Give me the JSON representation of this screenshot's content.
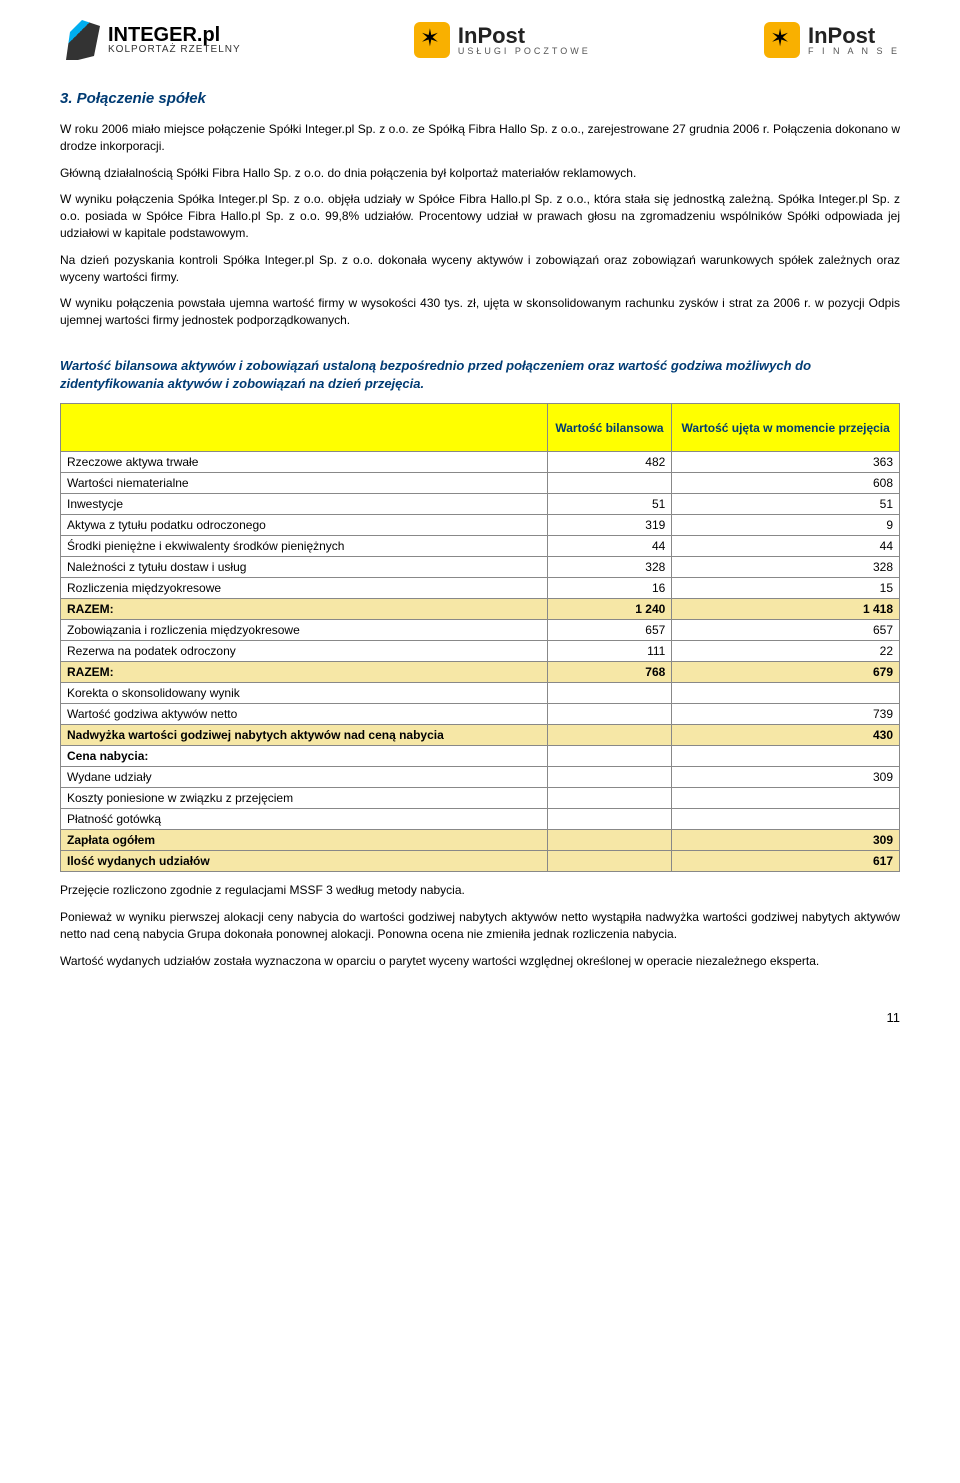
{
  "logos": {
    "integer": {
      "main": "INTEGER.pl",
      "sub": "KOLPORTAŻ RZETELNY"
    },
    "inpost1": {
      "main": "InPost",
      "sub": "USŁUGI POCZTOWE"
    },
    "inpost2": {
      "main": "InPost",
      "sub": "F I N A N S E"
    }
  },
  "heading": "3.  Połączenie spółek",
  "paragraphs": [
    "W roku 2006 miało miejsce połączenie Spółki Integer.pl Sp. z o.o. ze Spółką Fibra Hallo Sp. z o.o., zarejestrowane 27 grudnia 2006 r. Połączenia dokonano w drodze inkorporacji.",
    "Główną działalnością Spółki Fibra Hallo Sp. z o.o. do dnia połączenia był kolportaż materiałów reklamowych.",
    "W wyniku połączenia Spółka Integer.pl Sp. z o.o. objęła udziały w Spółce Fibra Hallo.pl Sp. z o.o., która stała się jednostką zależną. Spółka Integer.pl Sp. z o.o. posiada w Spółce Fibra Hallo.pl Sp. z o.o. 99,8% udziałów. Procentowy udział w prawach głosu na zgromadzeniu wspólników Spółki odpowiada jej udziałowi w kapitale podstawowym.",
    "Na dzień pozyskania kontroli Spółka Integer.pl Sp. z o.o. dokonała wyceny aktywów i zobowiązań oraz zobowiązań warunkowych spółek zależnych oraz wyceny wartości firmy.",
    "W wyniku połączenia powstała ujemna wartość firmy w wysokości 430 tys. zł, ujęta w skonsolidowanym rachunku zysków i strat za 2006 r. w pozycji Odpis ujemnej wartości firmy jednostek podporządkowanych."
  ],
  "subheading": "Wartość bilansowa aktywów i zobowiązań ustaloną bezpośrednio przed połączeniem oraz wartość godziwa możliwych do zidentyfikowania aktywów i zobowiązań na dzień przejęcia.",
  "table": {
    "headers": [
      "",
      "Wartość bilansowa",
      "Wartość ujęta w momencie przejęcia"
    ],
    "rows": [
      {
        "label": "Rzeczowe aktywa trwałe",
        "v1": "482",
        "v2": "363",
        "hl": false
      },
      {
        "label": "Wartości niematerialne",
        "v1": "",
        "v2": "608",
        "hl": false
      },
      {
        "label": "Inwestycje",
        "v1": "51",
        "v2": "51",
        "hl": false
      },
      {
        "label": "Aktywa z tytułu podatku odroczonego",
        "v1": "319",
        "v2": "9",
        "hl": false
      },
      {
        "label": "Środki pieniężne i ekwiwalenty środków pieniężnych",
        "v1": "44",
        "v2": "44",
        "hl": false
      },
      {
        "label": "Należności z tytułu dostaw i usług",
        "v1": "328",
        "v2": "328",
        "hl": false
      },
      {
        "label": "Rozliczenia międzyokresowe",
        "v1": "16",
        "v2": "15",
        "hl": false
      },
      {
        "label": "RAZEM:",
        "v1": "1 240",
        "v2": "1 418",
        "hl": true
      },
      {
        "label": "Zobowiązania i rozliczenia międzyokresowe",
        "v1": "657",
        "v2": "657",
        "hl": false
      },
      {
        "label": "Rezerwa na podatek odroczony",
        "v1": "111",
        "v2": "22",
        "hl": false
      },
      {
        "label": "RAZEM:",
        "v1": "768",
        "v2": "679",
        "hl": true
      },
      {
        "label": "Korekta o skonsolidowany wynik",
        "v1": "",
        "v2": "",
        "hl": false
      },
      {
        "label": "Wartość godziwa aktywów netto",
        "v1": "",
        "v2": "739",
        "hl": false
      },
      {
        "label": "Nadwyżka wartości godziwej nabytych aktywów nad ceną nabycia",
        "v1": "",
        "v2": "430",
        "hl": true
      },
      {
        "label": "Cena nabycia:",
        "v1": "",
        "v2": "",
        "hl": false,
        "bold": true
      },
      {
        "label": "Wydane udziały",
        "v1": "",
        "v2": "309",
        "hl": false
      },
      {
        "label": "Koszty poniesione w związku z przejęciem",
        "v1": "",
        "v2": "",
        "hl": false
      },
      {
        "label": "Płatność gotówką",
        "v1": "",
        "v2": "",
        "hl": false
      },
      {
        "label": "Zapłata ogółem",
        "v1": "",
        "v2": "309",
        "hl": true
      },
      {
        "label": "Ilość wydanych udziałów",
        "v1": "",
        "v2": "617",
        "hl": true
      }
    ]
  },
  "footParagraphs": [
    "Przejęcie rozliczono zgodnie z regulacjami MSSF 3 według metody nabycia.",
    "Ponieważ w wyniku pierwszej alokacji ceny nabycia do wartości godziwej nabytych aktywów netto wystąpiła nadwyżka wartości godziwej nabytych aktywów netto nad ceną nabycia Grupa dokonała ponownej alokacji. Ponowna ocena nie zmieniła jednak rozliczenia nabycia.",
    "Wartość wydanych udziałów została wyznaczona w oparciu o parytet wyceny wartości względnej określonej w operacie niezależnego eksperta."
  ],
  "pageNumber": "11",
  "colors": {
    "heading": "#003b73",
    "theadBg": "#ffff00",
    "hlRowBg": "#f6e7a6",
    "border": "#888888"
  }
}
